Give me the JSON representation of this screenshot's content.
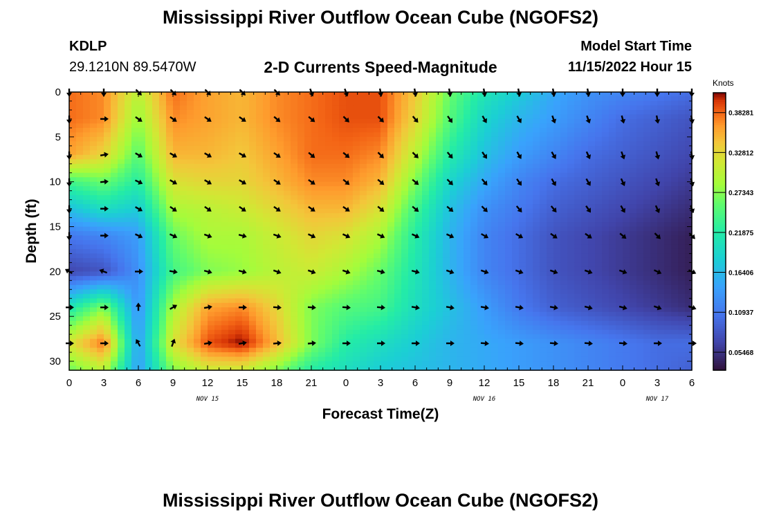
{
  "title": "Mississippi River Outflow Ocean Cube (NGOFS2)",
  "second_title": "Mississippi River Outflow Ocean Cube (NGOFS2)",
  "station": {
    "id": "KDLP",
    "coords": "29.1210N  89.5470W"
  },
  "model_start": {
    "label": "Model Start Time",
    "value": "11/15/2022 Hour 15"
  },
  "chart_data": {
    "type": "heatmap",
    "title": "2-D Currents Speed-Magnitude",
    "xlabel": "Forecast Time(Z)",
    "ylabel": "Depth (ft)",
    "x_range_hours": [
      0,
      54
    ],
    "y_range_ft": [
      0,
      31
    ],
    "x_ticks": [
      "0",
      "3",
      "6",
      "9",
      "12",
      "15",
      "18",
      "21",
      "0",
      "3",
      "6",
      "9",
      "12",
      "15",
      "18",
      "21",
      "0",
      "3",
      "6"
    ],
    "y_ticks": [
      "0",
      "5",
      "10",
      "15",
      "20",
      "25",
      "30"
    ],
    "date_labels": [
      {
        "label": "NOV 15",
        "x": 12
      },
      {
        "label": "NOV 16",
        "x": 36
      },
      {
        "label": "NOV 17",
        "x": 51
      }
    ],
    "colorbar": {
      "title": "Knots",
      "min": 0.03,
      "max": 0.41,
      "tick_values": [
        0.05468,
        0.10937,
        0.16406,
        0.21875,
        0.27343,
        0.32812,
        0.38281
      ],
      "tick_labels": [
        "0.05468",
        "0.10937",
        "0.16406",
        "0.21875",
        "0.27343",
        "0.32812",
        "0.38281"
      ]
    },
    "speed_grid": {
      "columns_x_hours": [
        0,
        3,
        6,
        9,
        12,
        15,
        18,
        21,
        24,
        27,
        30,
        33,
        36,
        39,
        42,
        45,
        48,
        51,
        54
      ],
      "rows_depth_ft": [
        0,
        3,
        7,
        10,
        13,
        16,
        20,
        24,
        28,
        31
      ],
      "values": [
        [
          0.38,
          0.37,
          0.3,
          0.38,
          0.36,
          0.35,
          0.37,
          0.38,
          0.39,
          0.39,
          0.34,
          0.26,
          0.21,
          0.18,
          0.15,
          0.13,
          0.12,
          0.11,
          0.1
        ],
        [
          0.38,
          0.37,
          0.28,
          0.37,
          0.36,
          0.35,
          0.37,
          0.38,
          0.39,
          0.39,
          0.33,
          0.25,
          0.19,
          0.16,
          0.14,
          0.12,
          0.1,
          0.09,
          0.08
        ],
        [
          0.36,
          0.33,
          0.25,
          0.35,
          0.35,
          0.34,
          0.36,
          0.38,
          0.38,
          0.37,
          0.3,
          0.22,
          0.17,
          0.14,
          0.12,
          0.1,
          0.09,
          0.08,
          0.07
        ],
        [
          0.24,
          0.26,
          0.22,
          0.32,
          0.33,
          0.33,
          0.35,
          0.37,
          0.37,
          0.35,
          0.27,
          0.19,
          0.15,
          0.12,
          0.1,
          0.09,
          0.08,
          0.07,
          0.06
        ],
        [
          0.17,
          0.2,
          0.18,
          0.29,
          0.3,
          0.31,
          0.33,
          0.35,
          0.35,
          0.32,
          0.24,
          0.17,
          0.13,
          0.11,
          0.09,
          0.08,
          0.07,
          0.06,
          0.05
        ],
        [
          0.11,
          0.12,
          0.14,
          0.26,
          0.29,
          0.29,
          0.31,
          0.33,
          0.32,
          0.29,
          0.22,
          0.16,
          0.12,
          0.1,
          0.08,
          0.07,
          0.06,
          0.05,
          0.04
        ],
        [
          0.07,
          0.08,
          0.13,
          0.24,
          0.27,
          0.28,
          0.3,
          0.31,
          0.29,
          0.26,
          0.21,
          0.16,
          0.12,
          0.1,
          0.08,
          0.07,
          0.06,
          0.05,
          0.04
        ],
        [
          0.21,
          0.27,
          0.13,
          0.29,
          0.36,
          0.37,
          0.33,
          0.27,
          0.25,
          0.24,
          0.2,
          0.17,
          0.14,
          0.11,
          0.09,
          0.08,
          0.07,
          0.06,
          0.05
        ],
        [
          0.32,
          0.38,
          0.14,
          0.32,
          0.39,
          0.41,
          0.35,
          0.27,
          0.22,
          0.2,
          0.18,
          0.16,
          0.15,
          0.14,
          0.13,
          0.12,
          0.11,
          0.1,
          0.1
        ],
        [
          0.26,
          0.3,
          0.14,
          0.27,
          0.31,
          0.31,
          0.27,
          0.22,
          0.2,
          0.18,
          0.17,
          0.16,
          0.15,
          0.14,
          0.13,
          0.12,
          0.11,
          0.1,
          0.09
        ]
      ]
    },
    "vectors": {
      "columns_x_hours": [
        0,
        3,
        6,
        9,
        12,
        15,
        18,
        21,
        24,
        27,
        30,
        33,
        36,
        39,
        42,
        45,
        48,
        51,
        54
      ],
      "rows_depth_ft": [
        0,
        3,
        7,
        10,
        13,
        16,
        20,
        24,
        28
      ],
      "direction_deg_from_east_clockwise": [
        [
          90,
          90,
          45,
          45,
          45,
          45,
          45,
          70,
          70,
          80,
          80,
          80,
          80,
          80,
          80,
          80,
          90,
          90,
          90
        ],
        [
          90,
          0,
          35,
          35,
          35,
          35,
          40,
          40,
          45,
          45,
          50,
          55,
          60,
          60,
          70,
          70,
          75,
          80,
          80
        ],
        [
          90,
          -10,
          30,
          30,
          30,
          30,
          35,
          40,
          40,
          45,
          45,
          50,
          55,
          60,
          60,
          65,
          70,
          75,
          80
        ],
        [
          90,
          -5,
          25,
          30,
          30,
          30,
          35,
          35,
          40,
          40,
          40,
          45,
          50,
          55,
          60,
          60,
          65,
          70,
          75
        ],
        [
          90,
          0,
          30,
          35,
          35,
          35,
          35,
          35,
          35,
          40,
          40,
          40,
          45,
          50,
          50,
          55,
          60,
          65,
          70
        ],
        [
          90,
          0,
          25,
          25,
          20,
          15,
          20,
          25,
          25,
          25,
          25,
          25,
          30,
          30,
          35,
          35,
          40,
          45,
          45
        ],
        [
          210,
          200,
          0,
          10,
          15,
          15,
          20,
          20,
          20,
          15,
          15,
          20,
          20,
          20,
          20,
          20,
          20,
          25,
          25
        ],
        [
          0,
          0,
          270,
          -30,
          -10,
          0,
          5,
          5,
          5,
          5,
          10,
          10,
          10,
          10,
          10,
          15,
          15,
          20,
          20
        ],
        [
          0,
          0,
          240,
          -70,
          -10,
          -10,
          -5,
          -5,
          0,
          0,
          0,
          0,
          5,
          5,
          5,
          5,
          5,
          0,
          0
        ]
      ]
    }
  }
}
